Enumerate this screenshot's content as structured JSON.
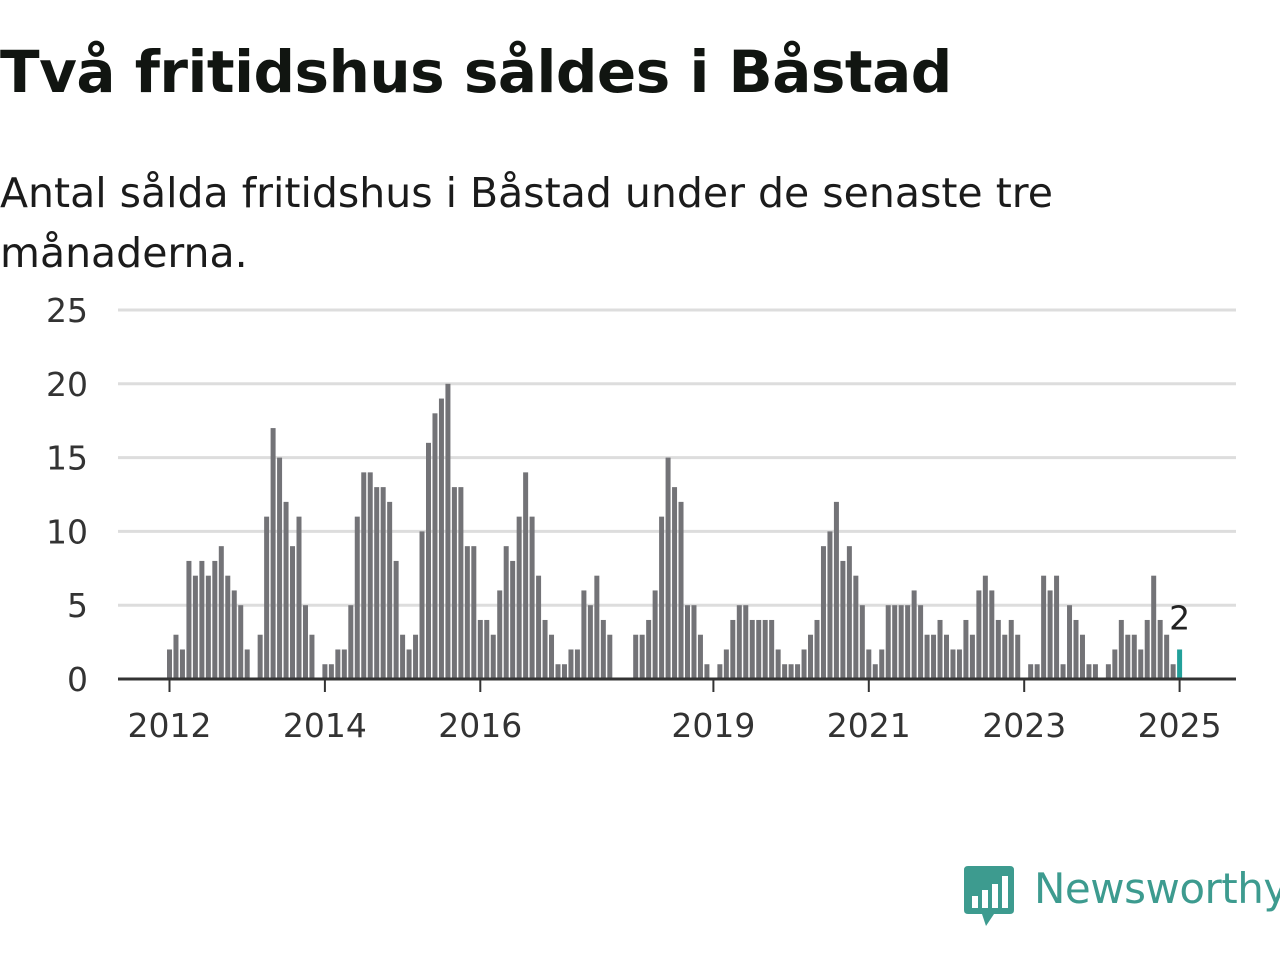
{
  "title": "Två fritidshus såldes i Båstad",
  "subtitle": "Antal sålda fritidshus i Båstad under de senaste tre månaderna.",
  "brand": {
    "name": "Newsworthy",
    "color": "#3d9b8f",
    "icon": "newsworthy-chart-bubble-icon"
  },
  "colors": {
    "bar": "#737377",
    "highlight": "#22a09a",
    "grid": "#dddddd",
    "axis": "#333333"
  },
  "chart_data": {
    "type": "bar",
    "title": "Två fritidshus såldes i Båstad",
    "subtitle": "Antal sålda fritidshus i Båstad under de senaste tre månaderna.",
    "xlabel": "",
    "ylabel": "",
    "ylim": [
      0,
      25
    ],
    "yticks": [
      0,
      5,
      10,
      15,
      20,
      25
    ],
    "grid": true,
    "x_start": "2011-05",
    "x_end": "2025-01",
    "xticks": [
      {
        "label": "2012",
        "month": "2012-01"
      },
      {
        "label": "2014",
        "month": "2014-01"
      },
      {
        "label": "2016",
        "month": "2016-01"
      },
      {
        "label": "2019",
        "month": "2019-01"
      },
      {
        "label": "2021",
        "month": "2021-01"
      },
      {
        "label": "2023",
        "month": "2023-01"
      },
      {
        "label": "2025",
        "month": "2025-01"
      }
    ],
    "highlight": {
      "month": "2025-01",
      "value": 2,
      "label": "2"
    },
    "values": [
      0,
      0,
      0,
      0,
      0,
      0,
      0,
      0,
      2,
      3,
      2,
      8,
      7,
      8,
      7,
      8,
      9,
      7,
      6,
      5,
      2,
      0,
      3,
      11,
      17,
      15,
      12,
      9,
      11,
      5,
      3,
      0,
      1,
      1,
      2,
      2,
      5,
      11,
      14,
      14,
      13,
      13,
      12,
      8,
      3,
      2,
      3,
      10,
      16,
      18,
      19,
      20,
      13,
      13,
      9,
      9,
      4,
      4,
      3,
      6,
      9,
      8,
      11,
      14,
      11,
      7,
      4,
      3,
      1,
      1,
      2,
      2,
      6,
      5,
      7,
      4,
      3,
      0,
      0,
      0,
      3,
      3,
      4,
      6,
      11,
      15,
      13,
      12,
      5,
      5,
      3,
      1,
      0,
      1,
      2,
      4,
      5,
      5,
      4,
      4,
      4,
      4,
      2,
      1,
      1,
      1,
      2,
      3,
      4,
      9,
      10,
      12,
      8,
      9,
      7,
      5,
      2,
      1,
      2,
      5,
      5,
      5,
      5,
      6,
      5,
      3,
      3,
      4,
      3,
      2,
      2,
      4,
      3,
      6,
      7,
      6,
      4,
      3,
      4,
      3,
      0,
      1,
      1,
      7,
      6,
      7,
      1,
      5,
      4,
      3,
      1,
      1,
      0,
      1,
      2,
      4,
      3,
      3,
      2,
      4,
      7,
      4,
      3,
      1,
      2
    ]
  }
}
